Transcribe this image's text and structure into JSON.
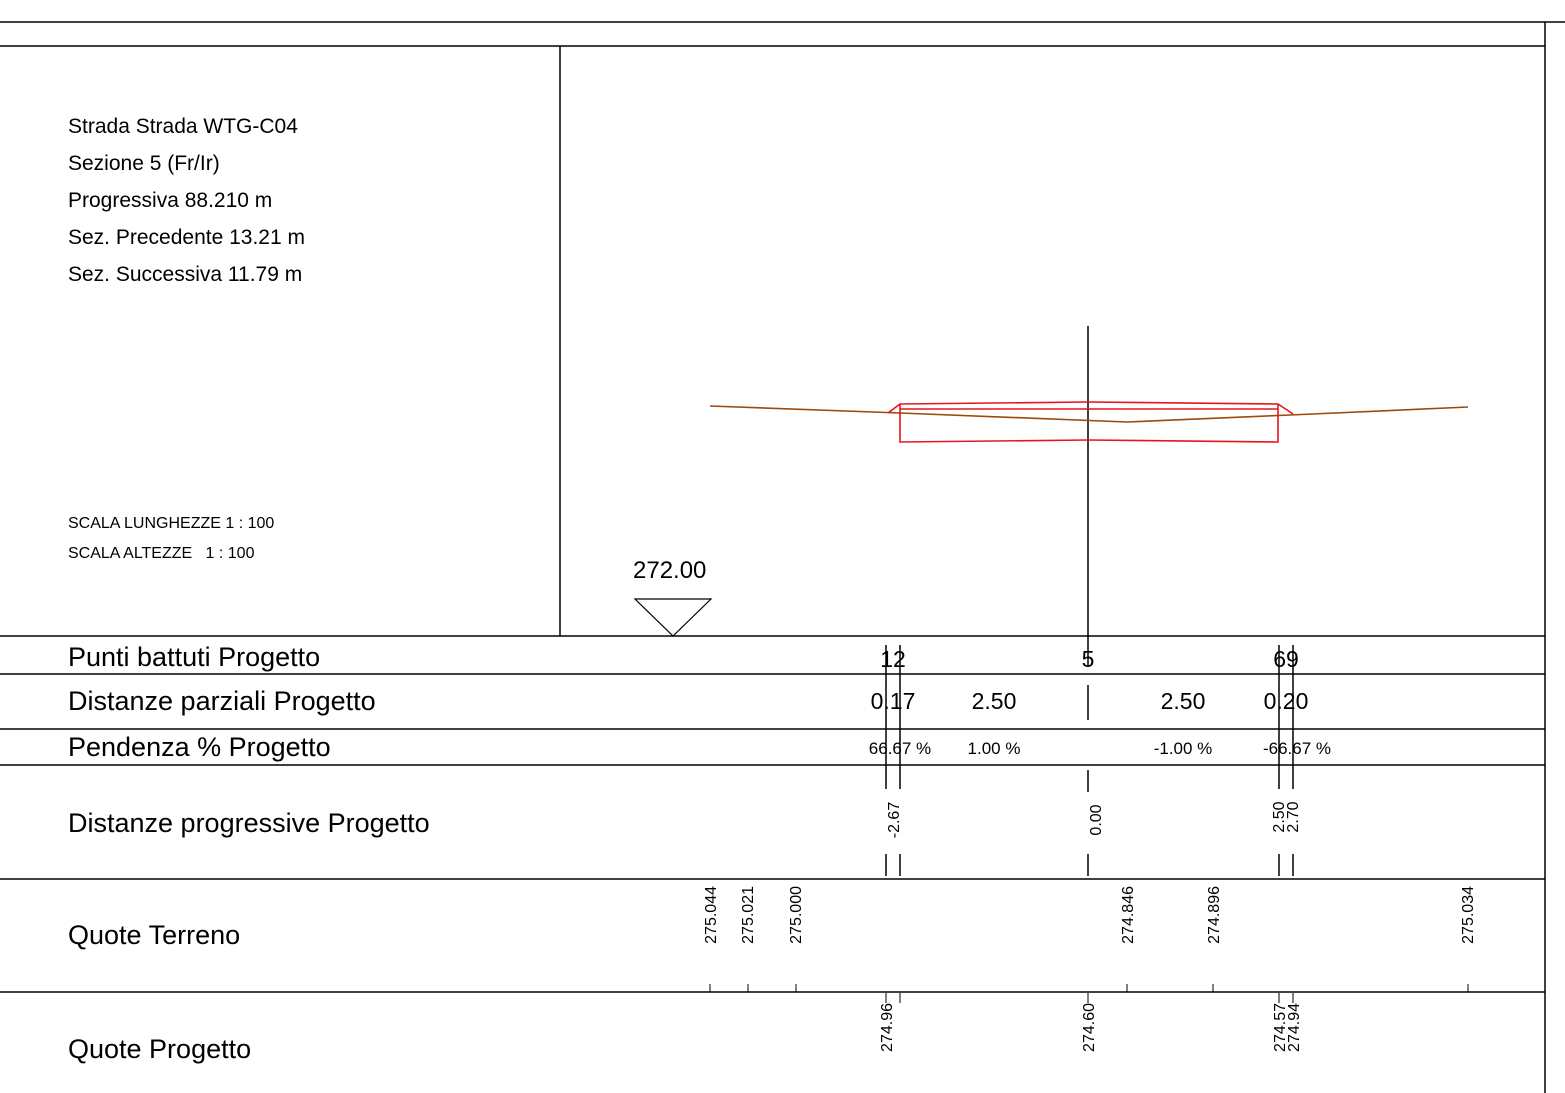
{
  "header": {
    "road": "Strada Strada WTG-C04",
    "section": "Sezione 5 (Fr/Ir)",
    "progressive": "Progressiva 88.210 m",
    "previous": "Sez. Precedente 13.21 m",
    "next": "Sez. Successiva 11.79 m",
    "scale_lengths": "SCALA LUNGHEZZE 1 : 100",
    "scale_heights": "SCALA ALTEZZE   1 : 100"
  },
  "datum_label": "272.00",
  "rows": {
    "points": "Punti battuti Progetto",
    "partial_distances": "Distanze parziali Progetto",
    "slope": "Pendenza % Progetto",
    "progressive_distances": "Distanze progressive Progetto",
    "terrain_heights": "Quote Terreno",
    "design_heights": "Quote Progetto"
  },
  "table": {
    "points": [
      "12",
      "5",
      "69"
    ],
    "partial_distances": [
      "0.17",
      "2.50",
      "2.50",
      "0.20"
    ],
    "slopes": [
      "66.67 %",
      "1.00 %",
      "-1.00 %",
      "-66.67 %"
    ],
    "progressive_distances": [
      "-2.67",
      "0.00",
      "2.50",
      "2.70"
    ],
    "terrain_heights": [
      "275.044",
      "275.021",
      "275.000",
      "274.846",
      "274.896",
      "275.034"
    ],
    "design_heights": [
      "274.96",
      "274.60",
      "274.57",
      "274.94"
    ]
  },
  "colors": {
    "lines": "#000000",
    "terrain": "#9c4a0c",
    "project": "#e8141c"
  }
}
